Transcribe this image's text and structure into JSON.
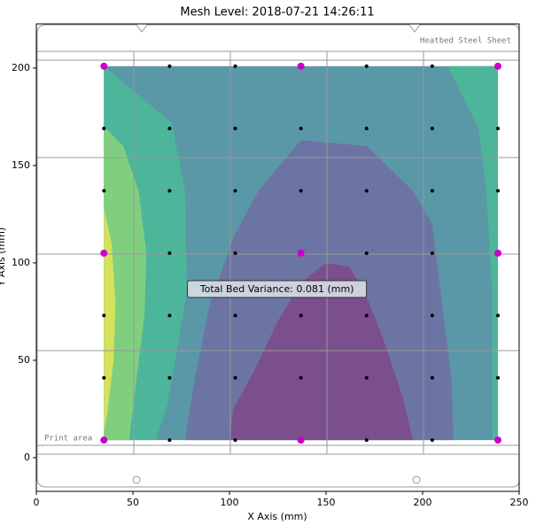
{
  "chart_data": {
    "type": "contour",
    "title": "Mesh Level: 2018-07-21 14:26:11",
    "xlabel": "X Axis (mm)",
    "ylabel": "Y Axis (mm)",
    "xlim": [
      0,
      250
    ],
    "ylim": [
      -17.3,
      222.7
    ],
    "xticks": [
      0,
      50,
      100,
      150,
      200,
      250
    ],
    "yticks": [
      0,
      50,
      100,
      150,
      200
    ],
    "bed_labels": {
      "sheet": "Heatbed Steel Sheet",
      "print_area": "Print area"
    },
    "annotation": {
      "text": "Total Bed Variance: 0.081 (mm)",
      "x": 124.6,
      "y": 86.8
    },
    "contours": [
      {
        "color": "#5a98a8",
        "x": [
          35,
          239,
          239,
          35
        ],
        "y": [
          9,
          9,
          201,
          201
        ]
      },
      {
        "color": "#4db59a",
        "x": [
          213,
          239,
          239,
          236,
          236,
          233,
          229
        ],
        "y": [
          201,
          201,
          9,
          9,
          85,
          137,
          169
        ]
      },
      {
        "color": "#4db59a",
        "x": [
          35,
          70,
          77,
          78,
          68,
          62,
          35
        ],
        "y": [
          201,
          172,
          137,
          85,
          28,
          9,
          9
        ]
      },
      {
        "color": "#80cf7f",
        "x": [
          35,
          45,
          53,
          57,
          56,
          52,
          48,
          35
        ],
        "y": [
          170,
          160,
          137,
          105,
          73,
          41,
          9,
          9
        ]
      },
      {
        "color": "#d5e25b",
        "x": [
          35,
          39,
          41,
          40,
          37,
          35
        ],
        "y": [
          128,
          110,
          80,
          50,
          25,
          12
        ]
      },
      {
        "color": "#6c74a3",
        "x": [
          77,
          82,
          90,
          103,
          115,
          137,
          171,
          195,
          205,
          210,
          215,
          216
        ],
        "y": [
          9,
          40,
          80,
          115,
          137,
          163,
          160,
          137,
          120,
          80,
          40,
          9
        ]
      },
      {
        "color": "#7b4f8b",
        "x": [
          100,
          102,
          113,
          125,
          137,
          150,
          162,
          170,
          180,
          190,
          195
        ],
        "y": [
          9,
          25,
          45,
          70,
          90,
          100,
          98,
          85,
          60,
          30,
          9
        ]
      }
    ],
    "points": {
      "color": "#000000",
      "x": [
        69,
        103,
        171,
        205,
        35,
        69,
        103,
        137,
        171,
        205,
        239,
        35,
        69,
        103,
        137,
        171,
        205,
        239,
        69,
        103,
        171,
        205,
        35,
        69,
        103,
        137,
        171,
        205,
        239,
        35,
        69,
        103,
        137,
        171,
        205,
        239,
        69,
        103,
        171,
        205
      ],
      "y": [
        201,
        201,
        201,
        201,
        169,
        169,
        169,
        169,
        169,
        169,
        169,
        137,
        137,
        137,
        137,
        137,
        137,
        137,
        105,
        105,
        105,
        105,
        73,
        73,
        73,
        73,
        73,
        73,
        73,
        41,
        41,
        41,
        41,
        41,
        41,
        41,
        9,
        9,
        9,
        9
      ]
    },
    "highlight_points": {
      "color": "#cc00cc",
      "x": [
        35,
        137,
        239,
        35,
        137,
        239,
        35,
        137,
        239
      ],
      "y": [
        201,
        201,
        201,
        105,
        105,
        105,
        9,
        9,
        9
      ]
    }
  }
}
